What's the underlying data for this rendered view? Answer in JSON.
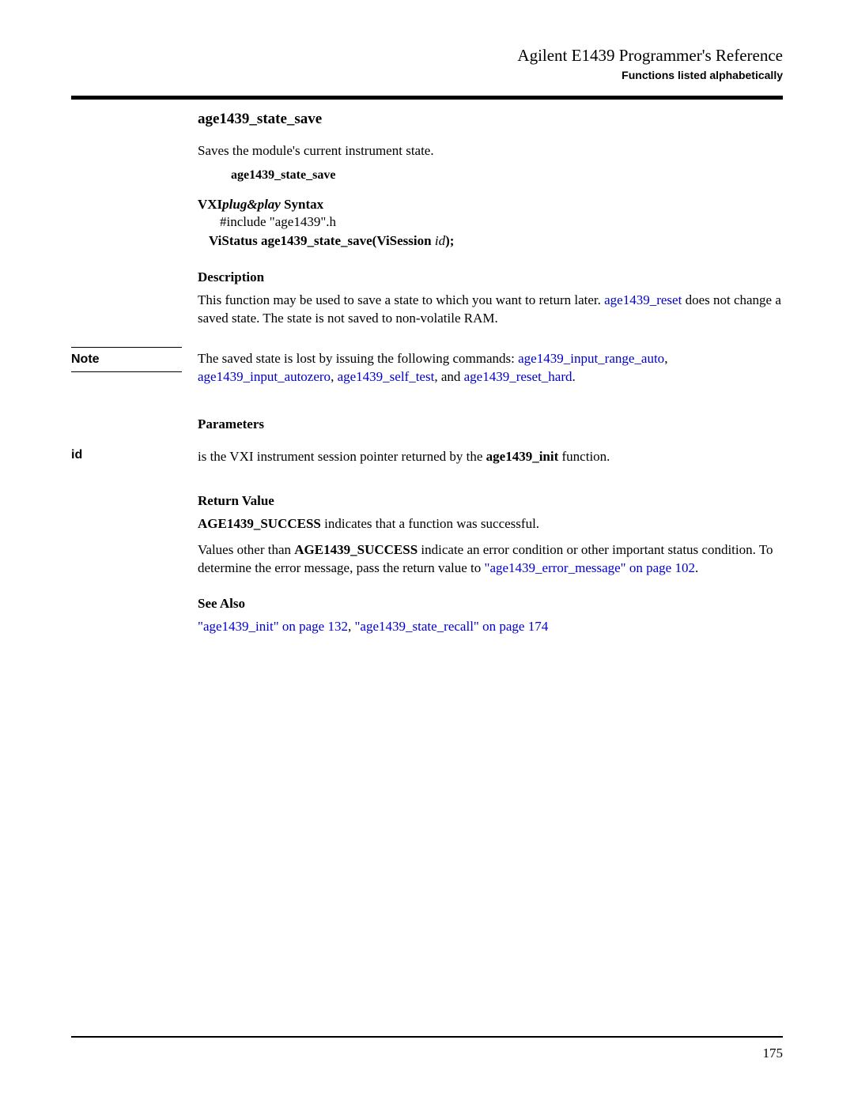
{
  "header": {
    "doc_title": "Agilent E1439 Programmer's Reference",
    "section": "Functions listed alphabetically"
  },
  "func": {
    "name": "age1439_state_save",
    "summary": "Saves the module's current instrument state.",
    "name_repeat": "age1439_state_save"
  },
  "syntax": {
    "label_prefix": "VXI",
    "label_italic": "plug&play",
    "label_suffix": " Syntax",
    "include": "#include \"age1439\".h",
    "proto_pre": "ViStatus age1439_state_save(ViSession ",
    "proto_id": "id",
    "proto_post": ");"
  },
  "description": {
    "heading": "Description",
    "text_pre": "This function may be used to save a state to which you want to return later. ",
    "link1": "age1439_reset",
    "text_post": " does not change a saved state. The state is not saved to non-volatile RAM."
  },
  "note": {
    "label": "Note",
    "text_pre": "The saved state is lost by issuing the following commands: ",
    "link1": "age1439_input_range_auto",
    "sep1": ", ",
    "link2": "age1439_input_autozero",
    "sep2": ", ",
    "link3": "age1439_self_test",
    "sep3": ", and ",
    "link4": "age1439_reset_hard",
    "tail": "."
  },
  "parameters": {
    "heading": "Parameters",
    "id_label": "id",
    "id_text_pre": "is the VXI instrument session pointer returned by the ",
    "id_bold": "age1439_init",
    "id_text_post": " function."
  },
  "return": {
    "heading": "Return Value",
    "p1_bold": "AGE1439_SUCCESS",
    "p1_rest": " indicates that a function was successful.",
    "p2_pre": "Values other than ",
    "p2_bold": "AGE1439_SUCCESS",
    "p2_mid": " indicate an error condition or other important status condition. To determine the error message, pass the return value to ",
    "p2_link": "\"age1439_error_message\" on page 102",
    "p2_tail": "."
  },
  "seealso": {
    "heading": "See Also",
    "link1": "\"age1439_init\" on page 132",
    "sep": ", ",
    "link2": "\"age1439_state_recall\" on page 174"
  },
  "page_number": "175",
  "colors": {
    "link": "#0000cc",
    "text": "#000000",
    "bg": "#ffffff"
  }
}
